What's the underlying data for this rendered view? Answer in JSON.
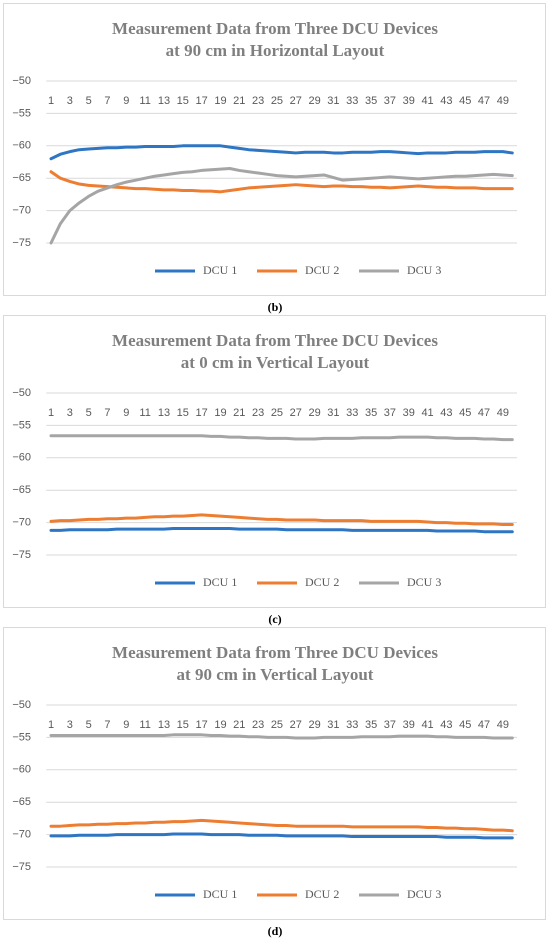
{
  "chart_data": [
    {
      "type": "line",
      "title": [
        "Measurement Data from Three DCU Devices",
        "at 90 cm in Horizontal Layout"
      ],
      "caption": "(b)",
      "categories": [
        1,
        null,
        3,
        null,
        5,
        null,
        7,
        null,
        9,
        null,
        11,
        null,
        13,
        null,
        15,
        null,
        17,
        null,
        19,
        null,
        21,
        null,
        23,
        null,
        25,
        null,
        27,
        null,
        29,
        null,
        31,
        null,
        33,
        null,
        35,
        null,
        37,
        null,
        39,
        null,
        41,
        null,
        43,
        null,
        45,
        null,
        47,
        null,
        49,
        null
      ],
      "ylim": [
        -76,
        -50
      ],
      "yticks": [
        {
          "value": -75,
          "label": "−75"
        },
        {
          "value": -70,
          "label": "−70"
        },
        {
          "value": -65,
          "label": "−65"
        },
        {
          "value": -60,
          "label": "−60"
        },
        {
          "value": -55,
          "label": "−55"
        },
        {
          "value": -50,
          "label": "−50"
        }
      ],
      "grid": true,
      "legend": "bottom",
      "series": [
        {
          "name": "DCU 1",
          "color": "#2e75c4",
          "values": [
            -62,
            -61.3,
            -60.9,
            -60.6,
            -60.5,
            -60.4,
            -60.3,
            -60.3,
            -60.2,
            -60.2,
            -60.1,
            -60.1,
            -60.1,
            -60.1,
            -60,
            -60,
            -60,
            -60,
            -60,
            -60.2,
            -60.4,
            -60.6,
            -60.7,
            -60.8,
            -60.9,
            -61,
            -61.1,
            -61,
            -61,
            -61,
            -61.1,
            -61.1,
            -61,
            -61,
            -61,
            -60.9,
            -60.9,
            -61,
            -61.1,
            -61.2,
            -61.1,
            -61.1,
            -61.1,
            -61,
            -61,
            -61,
            -60.9,
            -60.9,
            -60.9,
            -61.1
          ]
        },
        {
          "name": "DCU 2",
          "color": "#ed7d31",
          "values": [
            -64,
            -65,
            -65.5,
            -65.9,
            -66.1,
            -66.2,
            -66.3,
            -66.4,
            -66.5,
            -66.6,
            -66.6,
            -66.7,
            -66.8,
            -66.8,
            -66.9,
            -66.9,
            -67,
            -67,
            -67.1,
            -66.9,
            -66.7,
            -66.5,
            -66.4,
            -66.3,
            -66.2,
            -66.1,
            -66,
            -66.1,
            -66.2,
            -66.3,
            -66.2,
            -66.2,
            -66.3,
            -66.3,
            -66.4,
            -66.4,
            -66.5,
            -66.4,
            -66.3,
            -66.2,
            -66.3,
            -66.4,
            -66.4,
            -66.5,
            -66.5,
            -66.5,
            -66.6,
            -66.6,
            -66.6,
            -66.6
          ]
        },
        {
          "name": "DCU 3",
          "color": "#a5a5a5",
          "values": [
            -75,
            -72,
            -70,
            -68.8,
            -67.8,
            -67,
            -66.5,
            -66,
            -65.6,
            -65.3,
            -65,
            -64.7,
            -64.5,
            -64.3,
            -64.1,
            -64,
            -63.8,
            -63.7,
            -63.6,
            -63.5,
            -63.8,
            -64,
            -64.2,
            -64.4,
            -64.6,
            -64.7,
            -64.8,
            -64.7,
            -64.6,
            -64.5,
            -64.9,
            -65.3,
            -65.2,
            -65.1,
            -65,
            -64.9,
            -64.8,
            -64.9,
            -65,
            -65.1,
            -65,
            -64.9,
            -64.8,
            -64.7,
            -64.7,
            -64.6,
            -64.5,
            -64.4,
            -64.5,
            -64.6
          ]
        }
      ]
    },
    {
      "type": "line",
      "title": [
        "Measurement Data from Three DCU Devices",
        "at 0 cm in Vertical Layout"
      ],
      "caption": "(c)",
      "categories": [
        1,
        null,
        3,
        null,
        5,
        null,
        7,
        null,
        9,
        null,
        11,
        null,
        13,
        null,
        15,
        null,
        17,
        null,
        19,
        null,
        21,
        null,
        23,
        null,
        25,
        null,
        27,
        null,
        29,
        null,
        31,
        null,
        33,
        null,
        35,
        null,
        37,
        null,
        39,
        null,
        41,
        null,
        43,
        null,
        45,
        null,
        47,
        null,
        49,
        null
      ],
      "ylim": [
        -76,
        -50
      ],
      "yticks": [
        {
          "value": -75,
          "label": "−75"
        },
        {
          "value": -70,
          "label": "−70"
        },
        {
          "value": -65,
          "label": "−65"
        },
        {
          "value": -60,
          "label": "−60"
        },
        {
          "value": -55,
          "label": "−55"
        },
        {
          "value": -50,
          "label": "−50"
        }
      ],
      "grid": true,
      "legend": "bottom",
      "series": [
        {
          "name": "DCU 1",
          "color": "#2e75c4",
          "values": [
            -71.2,
            -71.2,
            -71.1,
            -71.1,
            -71.1,
            -71.1,
            -71.1,
            -71,
            -71,
            -71,
            -71,
            -71,
            -71,
            -70.9,
            -70.9,
            -70.9,
            -70.9,
            -70.9,
            -70.9,
            -70.9,
            -71,
            -71,
            -71,
            -71,
            -71,
            -71.1,
            -71.1,
            -71.1,
            -71.1,
            -71.1,
            -71.1,
            -71.1,
            -71.2,
            -71.2,
            -71.2,
            -71.2,
            -71.2,
            -71.2,
            -71.2,
            -71.2,
            -71.2,
            -71.3,
            -71.3,
            -71.3,
            -71.3,
            -71.3,
            -71.4,
            -71.4,
            -71.4,
            -71.4
          ]
        },
        {
          "name": "DCU 2",
          "color": "#ed7d31",
          "values": [
            -69.8,
            -69.7,
            -69.7,
            -69.6,
            -69.5,
            -69.5,
            -69.4,
            -69.4,
            -69.3,
            -69.3,
            -69.2,
            -69.1,
            -69.1,
            -69,
            -69,
            -68.9,
            -68.8,
            -68.9,
            -69,
            -69.1,
            -69.2,
            -69.3,
            -69.4,
            -69.5,
            -69.5,
            -69.6,
            -69.6,
            -69.6,
            -69.6,
            -69.7,
            -69.7,
            -69.7,
            -69.7,
            -69.7,
            -69.8,
            -69.8,
            -69.8,
            -69.8,
            -69.8,
            -69.8,
            -69.9,
            -70,
            -70,
            -70.1,
            -70.1,
            -70.2,
            -70.2,
            -70.2,
            -70.3,
            -70.3
          ]
        },
        {
          "name": "DCU 3",
          "color": "#a5a5a5",
          "values": [
            -56.6,
            -56.6,
            -56.6,
            -56.6,
            -56.6,
            -56.6,
            -56.6,
            -56.6,
            -56.6,
            -56.6,
            -56.6,
            -56.6,
            -56.6,
            -56.6,
            -56.6,
            -56.6,
            -56.6,
            -56.7,
            -56.7,
            -56.8,
            -56.8,
            -56.9,
            -56.9,
            -57,
            -57,
            -57,
            -57.1,
            -57.1,
            -57.1,
            -57,
            -57,
            -57,
            -57,
            -56.9,
            -56.9,
            -56.9,
            -56.9,
            -56.8,
            -56.8,
            -56.8,
            -56.8,
            -56.9,
            -56.9,
            -57,
            -57,
            -57,
            -57.1,
            -57.1,
            -57.2,
            -57.2
          ]
        }
      ]
    },
    {
      "type": "line",
      "title": [
        "Measurement Data from Three DCU Devices",
        "at 90 cm in Vertical Layout"
      ],
      "caption": "(d)",
      "categories": [
        1,
        null,
        3,
        null,
        5,
        null,
        7,
        null,
        9,
        null,
        11,
        null,
        13,
        null,
        15,
        null,
        17,
        null,
        19,
        null,
        21,
        null,
        23,
        null,
        25,
        null,
        27,
        null,
        29,
        null,
        31,
        null,
        33,
        null,
        35,
        null,
        37,
        null,
        39,
        null,
        41,
        null,
        43,
        null,
        45,
        null,
        47,
        null,
        49,
        null
      ],
      "ylim": [
        -76,
        -50
      ],
      "yticks": [
        {
          "value": -75,
          "label": "−75"
        },
        {
          "value": -70,
          "label": "−70"
        },
        {
          "value": -65,
          "label": "−65"
        },
        {
          "value": -60,
          "label": "−60"
        },
        {
          "value": -55,
          "label": "−55"
        },
        {
          "value": -50,
          "label": "−50"
        }
      ],
      "grid": true,
      "legend": "bottom",
      "series": [
        {
          "name": "DCU 1",
          "color": "#2e75c4",
          "values": [
            -70.2,
            -70.2,
            -70.2,
            -70.1,
            -70.1,
            -70.1,
            -70.1,
            -70,
            -70,
            -70,
            -70,
            -70,
            -70,
            -69.9,
            -69.9,
            -69.9,
            -69.9,
            -70,
            -70,
            -70,
            -70,
            -70.1,
            -70.1,
            -70.1,
            -70.1,
            -70.2,
            -70.2,
            -70.2,
            -70.2,
            -70.2,
            -70.2,
            -70.2,
            -70.3,
            -70.3,
            -70.3,
            -70.3,
            -70.3,
            -70.3,
            -70.3,
            -70.3,
            -70.3,
            -70.3,
            -70.4,
            -70.4,
            -70.4,
            -70.4,
            -70.5,
            -70.5,
            -70.5,
            -70.5
          ]
        },
        {
          "name": "DCU 2",
          "color": "#ed7d31",
          "values": [
            -68.7,
            -68.7,
            -68.6,
            -68.5,
            -68.5,
            -68.4,
            -68.4,
            -68.3,
            -68.3,
            -68.2,
            -68.2,
            -68.1,
            -68.1,
            -68,
            -68,
            -67.9,
            -67.8,
            -67.9,
            -68,
            -68.1,
            -68.2,
            -68.3,
            -68.4,
            -68.5,
            -68.6,
            -68.6,
            -68.7,
            -68.7,
            -68.7,
            -68.7,
            -68.7,
            -68.7,
            -68.8,
            -68.8,
            -68.8,
            -68.8,
            -68.8,
            -68.8,
            -68.8,
            -68.8,
            -68.9,
            -68.9,
            -69,
            -69,
            -69.1,
            -69.1,
            -69.2,
            -69.3,
            -69.3,
            -69.4
          ]
        },
        {
          "name": "DCU 3",
          "color": "#a5a5a5",
          "values": [
            -54.7,
            -54.7,
            -54.7,
            -54.7,
            -54.7,
            -54.7,
            -54.7,
            -54.7,
            -54.7,
            -54.7,
            -54.7,
            -54.7,
            -54.7,
            -54.6,
            -54.6,
            -54.6,
            -54.6,
            -54.7,
            -54.7,
            -54.8,
            -54.8,
            -54.9,
            -54.9,
            -55,
            -55,
            -55,
            -55.1,
            -55.1,
            -55.1,
            -55,
            -55,
            -55,
            -55,
            -54.9,
            -54.9,
            -54.9,
            -54.9,
            -54.8,
            -54.8,
            -54.8,
            -54.8,
            -54.9,
            -54.9,
            -55,
            -55,
            -55,
            -55,
            -55.1,
            -55.1,
            -55.1
          ]
        }
      ]
    }
  ]
}
